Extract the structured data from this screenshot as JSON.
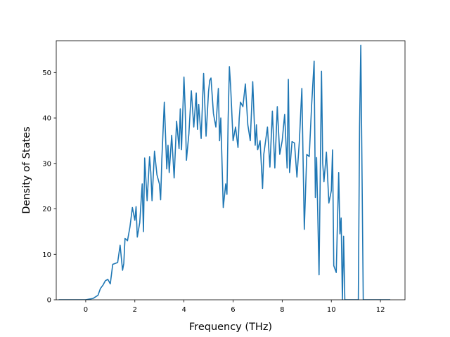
{
  "chart_data": {
    "type": "line",
    "title": "",
    "xlabel": "Frequency (THz)",
    "ylabel": "Density of States",
    "xlim": [
      -1.2,
      13.0
    ],
    "ylim": [
      0,
      57
    ],
    "xticks": [
      0,
      2,
      4,
      6,
      8,
      10,
      12
    ],
    "yticks": [
      0,
      10,
      20,
      30,
      40,
      50
    ],
    "grid": false,
    "legend": "none",
    "line_color": "#1f77b4",
    "series": [
      {
        "name": "",
        "x": [
          -1.1,
          -0.5,
          0.0,
          0.3,
          0.5,
          0.6,
          0.7,
          0.8,
          0.9,
          1.0,
          1.1,
          1.2,
          1.3,
          1.4,
          1.5,
          1.55,
          1.6,
          1.7,
          1.8,
          1.9,
          2.0,
          2.05,
          2.1,
          2.2,
          2.3,
          2.35,
          2.4,
          2.5,
          2.6,
          2.65,
          2.7,
          2.8,
          2.9,
          3.0,
          3.05,
          3.1,
          3.2,
          3.3,
          3.35,
          3.4,
          3.5,
          3.6,
          3.7,
          3.8,
          3.85,
          3.9,
          4.0,
          4.05,
          4.1,
          4.2,
          4.3,
          4.4,
          4.5,
          4.55,
          4.6,
          4.7,
          4.8,
          4.9,
          5.0,
          5.05,
          5.1,
          5.2,
          5.3,
          5.4,
          5.45,
          5.5,
          5.6,
          5.7,
          5.75,
          5.8,
          5.85,
          5.9,
          6.0,
          6.1,
          6.2,
          6.25,
          6.3,
          6.4,
          6.5,
          6.6,
          6.7,
          6.8,
          6.9,
          6.95,
          7.0,
          7.1,
          7.2,
          7.25,
          7.3,
          7.4,
          7.5,
          7.6,
          7.7,
          7.8,
          7.9,
          8.0,
          8.1,
          8.2,
          8.25,
          8.3,
          8.4,
          8.5,
          8.6,
          8.7,
          8.8,
          8.9,
          9.0,
          9.1,
          9.2,
          9.3,
          9.35,
          9.4,
          9.5,
          9.6,
          9.65,
          9.7,
          9.8,
          9.9,
          10.0,
          10.05,
          10.1,
          10.2,
          10.3,
          10.35,
          10.4,
          10.45,
          10.5,
          10.55,
          10.6,
          10.7,
          10.8,
          10.9,
          11.0,
          11.1,
          11.15,
          11.2,
          11.3,
          11.5,
          12.0,
          12.4
        ],
        "y": [
          0,
          0,
          0,
          0.3,
          1.0,
          2.5,
          3.2,
          4.2,
          4.5,
          3.5,
          7.8,
          8.0,
          8.2,
          12.0,
          6.5,
          8.0,
          13.5,
          13.0,
          16.0,
          20.3,
          17.5,
          20.5,
          13.8,
          17.0,
          25.5,
          15.0,
          31.2,
          21.8,
          31.5,
          28.0,
          21.8,
          32.7,
          27.5,
          25.5,
          22.0,
          31.0,
          43.5,
          28.8,
          34.0,
          28.0,
          36.2,
          26.8,
          39.3,
          33.3,
          42.0,
          33.0,
          49.0,
          42.0,
          30.7,
          36.5,
          46.0,
          38.0,
          45.5,
          37.5,
          43.0,
          35.5,
          49.8,
          36.0,
          45.8,
          48.3,
          48.8,
          41.0,
          38.0,
          46.5,
          35.0,
          40.0,
          20.3,
          25.5,
          23.2,
          40.0,
          51.3,
          47.0,
          35.0,
          38.0,
          33.5,
          40.0,
          43.5,
          42.5,
          47.5,
          38.5,
          35.0,
          48.0,
          34.0,
          38.5,
          33.0,
          35.0,
          24.5,
          32.0,
          34.0,
          38.0,
          29.2,
          41.5,
          29.0,
          42.5,
          32.0,
          35.0,
          40.8,
          29.0,
          48.5,
          28.0,
          34.8,
          34.5,
          27.0,
          35.0,
          46.5,
          15.5,
          32.0,
          31.5,
          43.0,
          52.5,
          22.5,
          31.3,
          5.5,
          50.3,
          30.0,
          26.0,
          32.5,
          21.3,
          24.0,
          33.0,
          7.5,
          6.0,
          28.0,
          14.5,
          18.0,
          0.0,
          14.0,
          0.0,
          0,
          0,
          0,
          0,
          0,
          0,
          38.0,
          56.0,
          0,
          0,
          0,
          0
        ]
      }
    ]
  }
}
